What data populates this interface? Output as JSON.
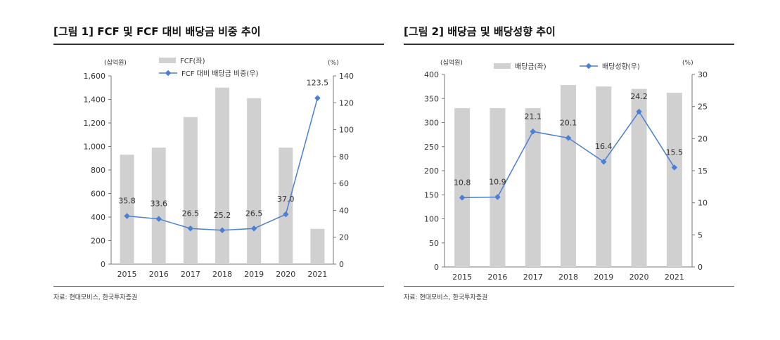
{
  "charts": [
    {
      "title": "[그림 1] FCF 및 FCF 대비 배당금 비중 추이",
      "source": "자료: 현대모비스, 한국투자증권",
      "chart_data": {
        "type": "bar",
        "categories": [
          "2015",
          "2016",
          "2017",
          "2018",
          "2019",
          "2020",
          "2021"
        ],
        "left_unit": "(십억원)",
        "right_unit": "(%)",
        "ylim_left": [
          0,
          1600
        ],
        "yticks_left": [
          "0",
          "200",
          "400",
          "600",
          "800",
          "1,000",
          "1,200",
          "1,400",
          "1,600"
        ],
        "ylim_right": [
          0,
          140
        ],
        "yticks_right": [
          "0",
          "20",
          "40",
          "60",
          "80",
          "100",
          "120",
          "140"
        ],
        "series": [
          {
            "name": "FCF(좌)",
            "type": "bar",
            "axis": "left",
            "color": "#d0d0d0",
            "values": [
              930,
              990,
              1250,
              1500,
              1410,
              990,
              300
            ]
          },
          {
            "name": "FCF 대비 배당금 비중(우)",
            "type": "line",
            "axis": "right",
            "color": "#4a7fd4",
            "values": [
              35.8,
              33.6,
              26.5,
              25.2,
              26.5,
              37.0,
              123.5
            ],
            "labels": [
              "35.8",
              "33.6",
              "26.5",
              "25.2",
              "26.5",
              "37.0",
              "123.5"
            ]
          }
        ],
        "grid": false,
        "legend": "top"
      }
    },
    {
      "title": "[그림 2] 배당금 및 배당성향 추이",
      "source": "자료: 현대모비스, 한국투자증권",
      "chart_data": {
        "type": "bar",
        "categories": [
          "2015",
          "2016",
          "2017",
          "2018",
          "2019",
          "2020",
          "2021"
        ],
        "left_unit": "(십억원)",
        "right_unit": "(%)",
        "ylim_left": [
          0,
          400
        ],
        "yticks_left": [
          "0",
          "50",
          "100",
          "150",
          "200",
          "250",
          "300",
          "350",
          "400"
        ],
        "ylim_right": [
          0,
          30
        ],
        "yticks_right": [
          "0",
          "5",
          "10",
          "15",
          "20",
          "25",
          "30"
        ],
        "series": [
          {
            "name": "배당금(좌)",
            "type": "bar",
            "axis": "left",
            "color": "#d0d0d0",
            "values": [
              330,
              330,
              330,
              378,
              375,
              370,
              362
            ]
          },
          {
            "name": "배당성향(우)",
            "type": "line",
            "axis": "right",
            "color": "#4a7fd4",
            "values": [
              10.8,
              10.9,
              21.1,
              20.1,
              16.4,
              24.2,
              15.5
            ],
            "labels": [
              "10.8",
              "10.9",
              "21.1",
              "20.1",
              "16.4",
              "24.2",
              "15.5"
            ]
          }
        ],
        "grid": false,
        "legend": "top"
      }
    }
  ]
}
